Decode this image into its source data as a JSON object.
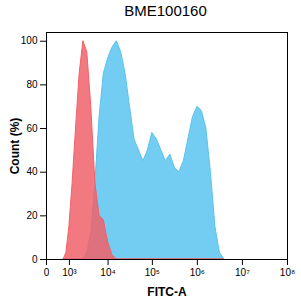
{
  "chart_data": {
    "type": "area",
    "title": "BME100160",
    "x_label": "FITC-A",
    "y_label": "Count (%)",
    "log": "x",
    "grid": false,
    "xlim": [
      0,
      100000000
    ],
    "ylim": [
      0,
      104
    ],
    "xticks": [
      0,
      {
        "value": 1000,
        "label": "10³"
      },
      {
        "value": 10000,
        "label": "10⁴"
      },
      {
        "value": 100000,
        "label": "10⁵"
      },
      {
        "value": 1000000,
        "label": "10⁶"
      },
      {
        "value": 10000000,
        "label": "10⁷"
      },
      {
        "value": 100000000,
        "label": "10⁸"
      }
    ],
    "yticks": [
      0,
      20,
      40,
      60,
      80,
      100
    ],
    "x": [
      631,
      794,
      1000,
      1259,
      1585,
      1995,
      2512,
      3162,
      3981,
      5012,
      6310,
      7943,
      10000,
      12589,
      15849,
      19953,
      25119,
      31623,
      39811,
      50119,
      63096,
      79433,
      100000,
      125893,
      158489,
      199526,
      251189,
      316228,
      398107,
      501187,
      630957,
      794328,
      1000000,
      1258925,
      1584893,
      1995262,
      2511886,
      3162278,
      3981072
    ],
    "series": [
      {
        "color": "#5bc3ee",
        "values": [
          0,
          0,
          0,
          0,
          0,
          0,
          0,
          3,
          12,
          35,
          65,
          85,
          92,
          97,
          100,
          95,
          85,
          70,
          55,
          50,
          45,
          50,
          58,
          55,
          50,
          45,
          48,
          42,
          40,
          45,
          55,
          65,
          70,
          68,
          60,
          40,
          15,
          3,
          0
        ]
      },
      {
        "color": "#f0626a",
        "values": [
          0,
          3,
          15,
          35,
          60,
          85,
          100,
          95,
          70,
          35,
          20,
          18,
          8,
          2,
          0,
          0,
          0,
          0,
          0,
          0,
          0,
          0,
          0,
          0,
          0,
          0,
          0,
          0,
          0,
          0,
          0,
          0,
          0,
          0,
          0,
          0,
          0,
          0,
          0
        ]
      }
    ]
  }
}
